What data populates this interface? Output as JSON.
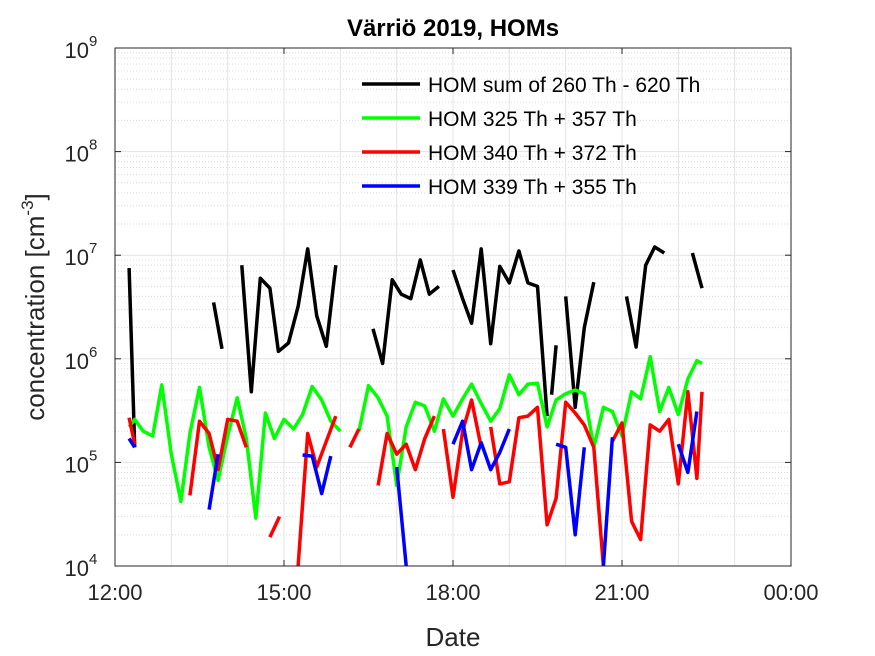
{
  "chart_data": {
    "type": "line",
    "title": "Värriö 2019, HOMs",
    "xlabel": "Date",
    "ylabel": "concentration [cm",
    "ylabel_exponent": "-3",
    "ylabel_close": "]",
    "x_unit": "hours",
    "xlim": [
      12,
      24
    ],
    "xticks": [
      {
        "value": 12,
        "label": "12:00"
      },
      {
        "value": 15,
        "label": "15:00"
      },
      {
        "value": 18,
        "label": "18:00"
      },
      {
        "value": 21,
        "label": "21:00"
      },
      {
        "value": 24,
        "label": "00:00"
      }
    ],
    "yscale": "log",
    "ylim": [
      10000,
      1000000000
    ],
    "yticks": [
      {
        "value": 10000,
        "base": "10",
        "exp": "4"
      },
      {
        "value": 100000,
        "base": "10",
        "exp": "5"
      },
      {
        "value": 1000000,
        "base": "10",
        "exp": "6"
      },
      {
        "value": 10000000,
        "base": "10",
        "exp": "7"
      },
      {
        "value": 100000000,
        "base": "10",
        "exp": "8"
      },
      {
        "value": 1000000000,
        "base": "10",
        "exp": "9"
      }
    ],
    "grid": true,
    "minor_grid": true,
    "legend_position": "top-right",
    "series": [
      {
        "name": "HOM sum of 260 Th - 620 Th",
        "color": "#000000",
        "segments": [
          [
            [
              12.25,
              7500000
            ],
            [
              12.35,
              140000
            ]
          ],
          [
            [
              13.75,
              3500000
            ],
            [
              13.9,
              1250000
            ]
          ],
          [
            [
              14.25,
              8000000
            ],
            [
              14.42,
              480000
            ],
            [
              14.58,
              6000000
            ],
            [
              14.75,
              4800000
            ],
            [
              14.9,
              1180000
            ],
            [
              15.08,
              1420000
            ],
            [
              15.25,
              3200000
            ],
            [
              15.42,
              11500000
            ],
            [
              15.58,
              2600000
            ],
            [
              15.75,
              1320000
            ],
            [
              15.92,
              8000000
            ]
          ],
          [
            [
              16.58,
              1950000
            ],
            [
              16.75,
              900000
            ],
            [
              16.92,
              5800000
            ],
            [
              17.08,
              4200000
            ],
            [
              17.25,
              3800000
            ],
            [
              17.42,
              9000000
            ],
            [
              17.58,
              4200000
            ],
            [
              17.75,
              5000000
            ]
          ],
          [
            [
              18.0,
              7200000
            ],
            [
              18.17,
              3800000
            ],
            [
              18.33,
              2200000
            ],
            [
              18.5,
              11500000
            ],
            [
              18.67,
              1400000
            ],
            [
              18.83,
              7800000
            ],
            [
              19.0,
              5400000
            ],
            [
              19.17,
              11000000
            ],
            [
              19.33,
              5400000
            ],
            [
              19.5,
              5000000
            ],
            [
              19.67,
              280000
            ]
          ],
          [
            [
              19.75,
              450000
            ],
            [
              19.83,
              1350000
            ]
          ],
          [
            [
              20.0,
              4000000
            ],
            [
              20.17,
              340000
            ],
            [
              20.33,
              2000000
            ],
            [
              20.5,
              5500000
            ]
          ],
          [
            [
              21.08,
              4000000
            ],
            [
              21.25,
              1300000
            ],
            [
              21.42,
              8000000
            ],
            [
              21.58,
              12000000
            ],
            [
              21.75,
              10500000
            ]
          ],
          [
            [
              22.25,
              10500000
            ],
            [
              22.42,
              4800000
            ]
          ]
        ]
      },
      {
        "name": "HOM 325 Th + 357 Th",
        "color": "#00ff00",
        "segments": [
          [
            [
              12.25,
              220000
            ],
            [
              12.35,
              260000
            ],
            [
              12.5,
              200000
            ],
            [
              12.67,
              180000
            ],
            [
              12.83,
              560000
            ],
            [
              13.0,
              120000
            ],
            [
              13.17,
              42000
            ],
            [
              13.33,
              190000
            ],
            [
              13.5,
              530000
            ],
            [
              13.67,
              140000
            ],
            [
              13.83,
              67000
            ],
            [
              14.0,
              180000
            ],
            [
              14.17,
              420000
            ],
            [
              14.33,
              170000
            ],
            [
              14.5,
              29000
            ],
            [
              14.67,
              300000
            ],
            [
              14.83,
              170000
            ],
            [
              15.0,
              260000
            ],
            [
              15.17,
              210000
            ],
            [
              15.33,
              290000
            ],
            [
              15.5,
              540000
            ],
            [
              15.67,
              400000
            ],
            [
              15.83,
              250000
            ],
            [
              16.0,
              200000
            ]
          ],
          [
            [
              16.33,
              200000
            ],
            [
              16.5,
              550000
            ],
            [
              16.67,
              420000
            ],
            [
              16.83,
              280000
            ],
            [
              17.0,
              60000
            ],
            [
              17.17,
              220000
            ],
            [
              17.33,
              380000
            ],
            [
              17.5,
              350000
            ],
            [
              17.67,
              200000
            ],
            [
              17.83,
              410000
            ],
            [
              18.0,
              280000
            ],
            [
              18.17,
              410000
            ],
            [
              18.33,
              570000
            ],
            [
              18.5,
              370000
            ],
            [
              18.67,
              250000
            ],
            [
              18.83,
              330000
            ],
            [
              19.0,
              700000
            ],
            [
              19.17,
              450000
            ],
            [
              19.33,
              570000
            ],
            [
              19.5,
              580000
            ],
            [
              19.67,
              220000
            ],
            [
              19.83,
              400000
            ],
            [
              20.0,
              460000
            ],
            [
              20.17,
              500000
            ],
            [
              20.33,
              460000
            ],
            [
              20.5,
              140000
            ],
            [
              20.67,
              340000
            ],
            [
              20.83,
              310000
            ],
            [
              21.0,
              180000
            ],
            [
              21.17,
              480000
            ],
            [
              21.33,
              410000
            ],
            [
              21.5,
              1050000
            ],
            [
              21.67,
              310000
            ],
            [
              21.83,
              530000
            ],
            [
              22.0,
              290000
            ],
            [
              22.17,
              640000
            ],
            [
              22.33,
              960000
            ],
            [
              22.42,
              900000
            ]
          ]
        ]
      },
      {
        "name": "HOM 340 Th + 372 Th",
        "color": "#ff0000",
        "segments": [
          [
            [
              12.25,
              270000
            ],
            [
              12.35,
              150000
            ]
          ],
          [
            [
              13.33,
              48000
            ],
            [
              13.5,
              250000
            ],
            [
              13.67,
              190000
            ],
            [
              13.83,
              85000
            ],
            [
              14.0,
              260000
            ],
            [
              14.17,
              250000
            ],
            [
              14.33,
              140000
            ]
          ],
          [
            [
              14.75,
              19000
            ],
            [
              14.92,
              30000
            ]
          ],
          [
            [
              15.25,
              10000
            ],
            [
              15.42,
              190000
            ],
            [
              15.58,
              90000
            ],
            [
              15.75,
              160000
            ],
            [
              15.92,
              280000
            ]
          ],
          [
            [
              16.17,
              140000
            ],
            [
              16.33,
              210000
            ]
          ],
          [
            [
              16.67,
              60000
            ],
            [
              16.83,
              190000
            ],
            [
              17.0,
              120000
            ],
            [
              17.17,
              150000
            ],
            [
              17.33,
              85000
            ],
            [
              17.5,
              170000
            ],
            [
              17.67,
              280000
            ]
          ],
          [
            [
              17.83,
              210000
            ],
            [
              18.0,
              46000
            ],
            [
              18.17,
              200000
            ],
            [
              18.33,
              400000
            ],
            [
              18.5,
              140000
            ]
          ],
          [
            [
              18.67,
              220000
            ],
            [
              18.83,
              62000
            ],
            [
              19.0,
              65000
            ],
            [
              19.17,
              270000
            ],
            [
              19.33,
              280000
            ],
            [
              19.5,
              340000
            ],
            [
              19.67,
              25000
            ],
            [
              19.83,
              45000
            ],
            [
              20.0,
              380000
            ],
            [
              20.17,
              300000
            ],
            [
              20.33,
              230000
            ],
            [
              20.5,
              140000
            ],
            [
              20.67,
              10000
            ]
          ],
          [
            [
              20.83,
              160000
            ],
            [
              21.0,
              240000
            ],
            [
              21.17,
              27000
            ],
            [
              21.33,
              18000
            ],
            [
              21.5,
              230000
            ],
            [
              21.67,
              200000
            ],
            [
              21.83,
              260000
            ],
            [
              22.0,
              62000
            ],
            [
              22.17,
              480000
            ],
            [
              22.33,
              70000
            ],
            [
              22.42,
              480000
            ]
          ]
        ]
      },
      {
        "name": "HOM 339 Th + 355 Th",
        "color": "#0000ff",
        "segments": [
          [
            [
              12.25,
              170000
            ],
            [
              12.35,
              140000
            ]
          ],
          [
            [
              13.67,
              35000
            ],
            [
              13.83,
              120000
            ]
          ],
          [
            [
              15.33,
              118000
            ],
            [
              15.5,
              115000
            ],
            [
              15.67,
              50000
            ],
            [
              15.83,
              115000
            ]
          ],
          [
            [
              17.0,
              90000
            ],
            [
              17.17,
              10000
            ]
          ],
          [
            [
              18.0,
              150000
            ],
            [
              18.17,
              250000
            ],
            [
              18.33,
              85000
            ],
            [
              18.5,
              155000
            ],
            [
              18.67,
              85000
            ],
            [
              18.83,
              125000
            ],
            [
              19.0,
              210000
            ]
          ],
          [
            [
              19.83,
              150000
            ],
            [
              20.0,
              140000
            ],
            [
              20.17,
              20000
            ],
            [
              20.33,
              140000
            ]
          ],
          [
            [
              20.67,
              10000
            ],
            [
              20.83,
              175000
            ]
          ],
          [
            [
              22.0,
              150000
            ],
            [
              22.17,
              80000
            ],
            [
              22.33,
              310000
            ]
          ]
        ]
      }
    ]
  }
}
